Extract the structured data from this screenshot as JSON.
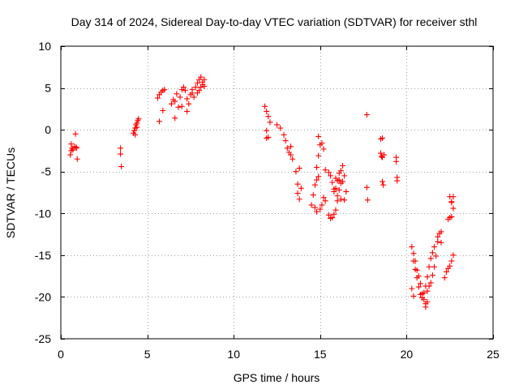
{
  "chart_data": {
    "type": "scatter",
    "title": "Day 314 of 2024, Sidereal Day-to-day VTEC variation (SDTVAR) for receiver sthl",
    "xlabel": "GPS time / hours",
    "ylabel": "SDTVAR / TECUs",
    "xlim": [
      0,
      25
    ],
    "ylim": [
      -25,
      10
    ],
    "xticks": [
      0,
      5,
      10,
      15,
      20,
      25
    ],
    "yticks": [
      -25,
      -20,
      -15,
      -10,
      -5,
      0,
      5,
      10
    ],
    "xtick_labels": [
      "0",
      "5",
      "10",
      "15",
      "20",
      "25"
    ],
    "ytick_labels": [
      "-25",
      "-20",
      "-15",
      "-10",
      "-5",
      "0",
      "5",
      "10"
    ],
    "grid": true,
    "marker": "+",
    "color": "#ff0000",
    "series": [
      {
        "name": "sthl",
        "x": [
          0.55,
          0.6,
          0.65,
          0.7,
          0.8,
          0.9,
          0.95,
          0.85,
          0.6,
          0.9,
          3.45,
          3.45,
          3.5,
          4.2,
          4.25,
          4.3,
          4.35,
          4.4,
          4.45,
          4.5,
          4.3,
          4.4,
          5.6,
          5.7,
          5.8,
          5.9,
          6.0,
          5.7,
          5.9,
          6.4,
          6.5,
          6.6,
          6.7,
          6.6,
          6.8,
          6.9,
          7.0,
          7.1,
          7.2,
          7.3,
          7.4,
          7.5,
          7.6,
          7.0,
          7.3,
          7.6,
          7.8,
          7.9,
          8.0,
          8.1,
          8.2,
          8.3,
          7.9,
          8.1,
          8.3,
          7.7,
          8.0,
          8.2,
          11.8,
          11.9,
          12.0,
          12.1,
          11.9,
          12.0,
          11.9,
          12.5,
          12.7,
          12.9,
          13.0,
          13.1,
          13.2,
          13.3,
          13.4,
          13.3,
          13.6,
          13.7,
          13.8,
          13.9,
          13.7,
          13.8,
          14.5,
          14.6,
          14.7,
          14.8,
          14.9,
          14.8,
          14.9,
          15.0,
          15.2,
          15.3,
          15.3,
          14.7,
          14.8,
          15.0,
          15.1,
          15.2,
          14.9,
          15.1,
          15.5,
          15.6,
          15.7,
          15.8,
          15.9,
          16.0,
          16.1,
          16.2,
          15.5,
          15.6,
          15.7,
          15.8,
          15.9,
          16.0,
          16.1,
          16.2,
          16.3,
          16.4,
          16.5,
          15.9,
          16.1,
          16.3,
          15.8,
          16.0,
          16.2,
          16.4,
          17.7,
          17.7,
          17.75,
          18.5,
          18.55,
          18.6,
          18.65,
          18.5,
          18.6,
          18.6,
          18.7,
          19.4,
          19.4,
          19.45,
          19.45,
          20.3,
          20.4,
          20.5,
          20.6,
          20.7,
          20.8,
          20.9,
          21.0,
          21.1,
          21.2,
          20.4,
          20.5,
          20.6,
          20.7,
          20.8,
          20.9,
          21.0,
          21.1,
          21.2,
          21.3,
          21.4,
          21.5,
          21.6,
          21.3,
          21.4,
          21.5,
          21.6,
          21.7,
          21.8,
          22.0,
          21.8,
          21.9,
          22.0,
          22.2,
          22.3,
          22.4,
          22.5,
          22.6,
          22.7,
          22.4,
          22.5,
          22.6,
          22.7,
          22.5,
          22.6,
          20.3,
          20.4,
          21.1,
          21.2,
          22.6,
          22.7
        ],
        "y": [
          -3.0,
          -2.5,
          -2.2,
          -2.4,
          -2.0,
          -2.1,
          -3.5,
          -0.5,
          -1.7,
          -2.2,
          -2.2,
          -2.9,
          -4.4,
          -0.4,
          -0.1,
          0.2,
          0.6,
          0.8,
          1.1,
          1.3,
          -0.6,
          0.3,
          3.8,
          4.2,
          4.5,
          4.7,
          4.8,
          1.0,
          2.3,
          3.1,
          3.6,
          3.4,
          4.3,
          1.4,
          2.7,
          3.9,
          4.8,
          5.1,
          4.7,
          2.2,
          3.1,
          4.2,
          4.8,
          2.8,
          3.7,
          4.4,
          5.1,
          5.6,
          6.0,
          6.3,
          5.7,
          5.2,
          4.4,
          5.1,
          6.0,
          3.9,
          4.7,
          5.4,
          2.8,
          2.2,
          1.6,
          0.9,
          -0.1,
          -0.9,
          -1.0,
          0.6,
          0.2,
          -0.6,
          -1.3,
          -2.2,
          -2.7,
          -3.0,
          -3.5,
          -2.0,
          -5.0,
          -6.5,
          -4.6,
          -7.0,
          -7.6,
          -8.3,
          -9.0,
          -7.8,
          -6.6,
          -6.0,
          -5.6,
          -4.5,
          -3.1,
          -1.8,
          -2.3,
          -4.8,
          -8.5,
          -9.3,
          -9.8,
          -9.5,
          -9.0,
          -8.1,
          -0.8,
          -1.6,
          -10.2,
          -10.6,
          -10.5,
          -10.1,
          -9.6,
          -8.5,
          -7.2,
          -6.4,
          -5.1,
          -5.5,
          -6.3,
          -7.1,
          -7.0,
          -6.1,
          -5.2,
          -4.9,
          -4.3,
          -5.5,
          -7.4,
          -5.8,
          -6.0,
          -6.2,
          -7.4,
          -7.9,
          -8.3,
          -8.4,
          1.8,
          -6.9,
          -8.4,
          -1.1,
          -3.2,
          -6.2,
          -6.6,
          -2.8,
          -1.0,
          -3.3,
          -3.0,
          -3.3,
          -3.8,
          -5.7,
          -6.1,
          -14.0,
          -14.8,
          -15.7,
          -16.8,
          -17.5,
          -18.4,
          -19.6,
          -20.3,
          -21.2,
          -20.6,
          -15.7,
          -16.7,
          -17.7,
          -18.8,
          -19.7,
          -20.1,
          -19.5,
          -18.7,
          -17.6,
          -16.4,
          -15.4,
          -14.7,
          -14.0,
          -18.7,
          -18.3,
          -17.4,
          -16.4,
          -15.1,
          -13.4,
          -12.2,
          -12.8,
          -12.4,
          -13.5,
          -17.7,
          -17.0,
          -16.6,
          -16.3,
          -15.7,
          -15.0,
          -10.7,
          -10.5,
          -10.4,
          -9.4,
          -8.0,
          -8.7,
          -19.0,
          -19.9,
          -20.8,
          -19.3,
          -8.6,
          -8.0
        ]
      }
    ]
  }
}
